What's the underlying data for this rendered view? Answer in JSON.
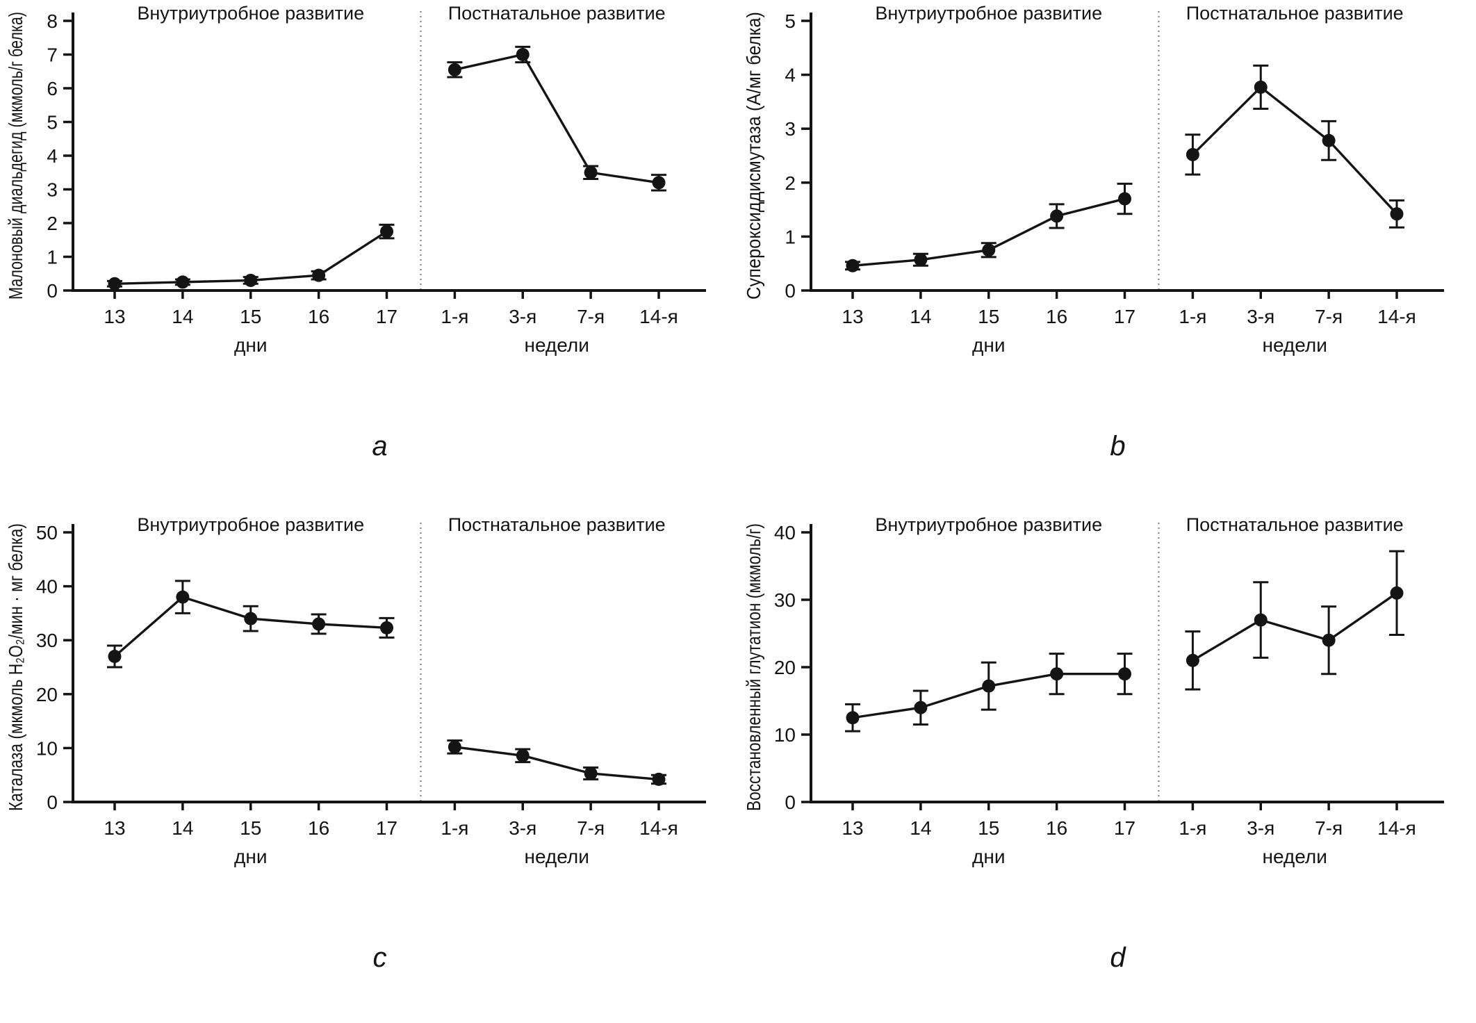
{
  "figure": {
    "background": "#ffffff",
    "ink_color": "#141414",
    "divider_color": "#7a7a7a"
  },
  "chart_data": [
    {
      "type": "line",
      "panel_letter": "a",
      "region_titles": [
        "Внутриутробное развитие",
        "Постнатальное развитие"
      ],
      "categories": [
        "13",
        "14",
        "15",
        "16",
        "17",
        "1-я",
        "3-я",
        "7-я",
        "14-я"
      ],
      "group_labels": [
        "дни",
        "недели"
      ],
      "divider_after_index": 4,
      "ylabel": "Малоновый диальдегид (мкмоль/г белка)",
      "ylim": [
        0,
        8
      ],
      "yticks": [
        0,
        1,
        2,
        3,
        4,
        5,
        6,
        7,
        8
      ],
      "values": [
        0.2,
        0.25,
        0.3,
        0.45,
        1.75,
        6.55,
        7.0,
        3.5,
        3.2
      ],
      "errors": [
        0.08,
        0.08,
        0.1,
        0.12,
        0.2,
        0.22,
        0.23,
        0.19,
        0.23
      ],
      "marker": "circle",
      "grid": false,
      "legend": "none"
    },
    {
      "type": "line",
      "panel_letter": "b",
      "region_titles": [
        "Внутриутробное развитие",
        "Постнатальное развитие"
      ],
      "categories": [
        "13",
        "14",
        "15",
        "16",
        "17",
        "1-я",
        "3-я",
        "7-я",
        "14-я"
      ],
      "group_labels": [
        "дни",
        "недели"
      ],
      "divider_after_index": 4,
      "ylabel": "Супероксиддисмутаза (А/мг белка)",
      "ylim": [
        0,
        5
      ],
      "yticks": [
        0,
        1,
        2,
        3,
        4,
        5
      ],
      "values": [
        0.46,
        0.57,
        0.75,
        1.38,
        1.7,
        2.52,
        3.77,
        2.78,
        1.42
      ],
      "errors": [
        0.07,
        0.11,
        0.13,
        0.22,
        0.28,
        0.37,
        0.4,
        0.36,
        0.25
      ],
      "marker": "circle",
      "grid": false,
      "legend": "none"
    },
    {
      "type": "line",
      "panel_letter": "c",
      "region_titles": [
        "Внутриутробное развитие",
        "Постнатальное развитие"
      ],
      "categories": [
        "13",
        "14",
        "15",
        "16",
        "17",
        "1-я",
        "3-я",
        "7-я",
        "14-я"
      ],
      "group_labels": [
        "дни",
        "недели"
      ],
      "divider_after_index": 4,
      "ylabel": "Каталаза (мкмоль H₂O₂/мин · мг белка)",
      "ylim": [
        0,
        50
      ],
      "yticks": [
        0,
        10,
        20,
        30,
        40,
        50
      ],
      "values": [
        27,
        38,
        34,
        33,
        32.3,
        10.2,
        8.6,
        5.3,
        4.2
      ],
      "errors": [
        2.0,
        3.0,
        2.3,
        1.8,
        1.8,
        1.2,
        1.2,
        1.1,
        0.8
      ],
      "marker": "circle",
      "grid": false,
      "legend": "none"
    },
    {
      "type": "line",
      "panel_letter": "d",
      "region_titles": [
        "Внутриутробное развитие",
        "Постнатальное развитие"
      ],
      "categories": [
        "13",
        "14",
        "15",
        "16",
        "17",
        "1-я",
        "3-я",
        "7-я",
        "14-я"
      ],
      "group_labels": [
        "дни",
        "недели"
      ],
      "divider_after_index": 4,
      "ylabel": "Восстановленный глутатион (мкмоль/г)",
      "ylim": [
        0,
        40
      ],
      "yticks": [
        0,
        10,
        20,
        30,
        40
      ],
      "values": [
        12.5,
        14.0,
        17.2,
        19.0,
        19.0,
        21.0,
        27.0,
        24.0,
        31.0
      ],
      "errors": [
        2.0,
        2.5,
        3.5,
        3.0,
        3.0,
        4.3,
        5.6,
        5.0,
        6.2
      ],
      "marker": "circle",
      "grid": false,
      "legend": "none"
    }
  ]
}
